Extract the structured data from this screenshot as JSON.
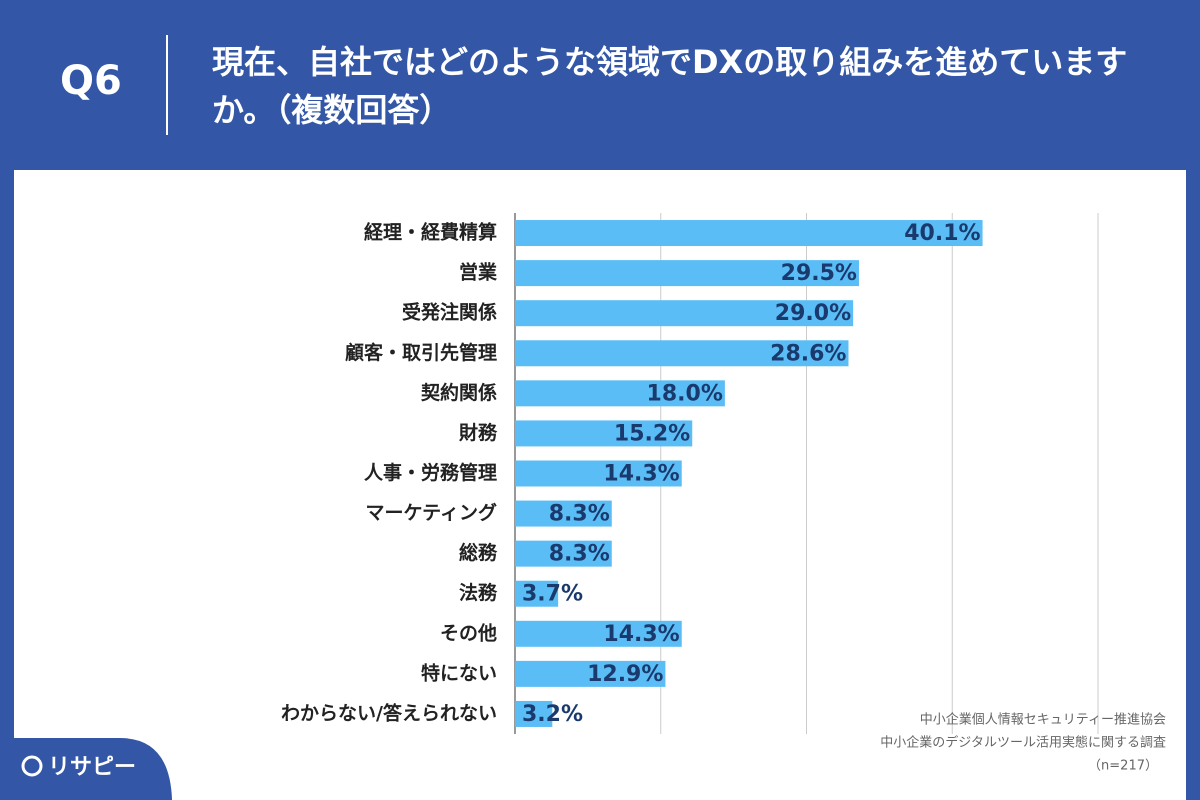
{
  "header": {
    "label": "Q6",
    "title": "現在、自社ではどのような領域でDXの取り組みを進めていますか。（複数回答）"
  },
  "chart_data": {
    "type": "bar",
    "orientation": "horizontal",
    "categories": [
      "経理・経費精算",
      "営業",
      "受発注関係",
      "顧客・取引先管理",
      "契約関係",
      "財務",
      "人事・労務管理",
      "マーケティング",
      "総務",
      "法務",
      "その他",
      "特にない",
      "わからない/答えられない"
    ],
    "values": [
      40.1,
      29.5,
      29.0,
      28.6,
      18.0,
      15.2,
      14.3,
      8.3,
      8.3,
      3.7,
      14.3,
      12.9,
      3.2
    ],
    "value_labels": [
      "40.1%",
      "29.5%",
      "29.0%",
      "28.6%",
      "18.0%",
      "15.2%",
      "14.3%",
      "8.3%",
      "8.3%",
      "3.7%",
      "14.3%",
      "12.9%",
      "3.2%"
    ],
    "color": "#5bbdf6",
    "xlim": [
      0,
      50
    ],
    "xticks": [
      0,
      12.5,
      25,
      37.5,
      50
    ],
    "grid": true
  },
  "footer": {
    "source": [
      "中小企業個人情報セキュリティー推進協会",
      "中小企業のデジタルツール活用実態に関する調査",
      "（n=217）"
    ],
    "logo": "リサピー"
  }
}
